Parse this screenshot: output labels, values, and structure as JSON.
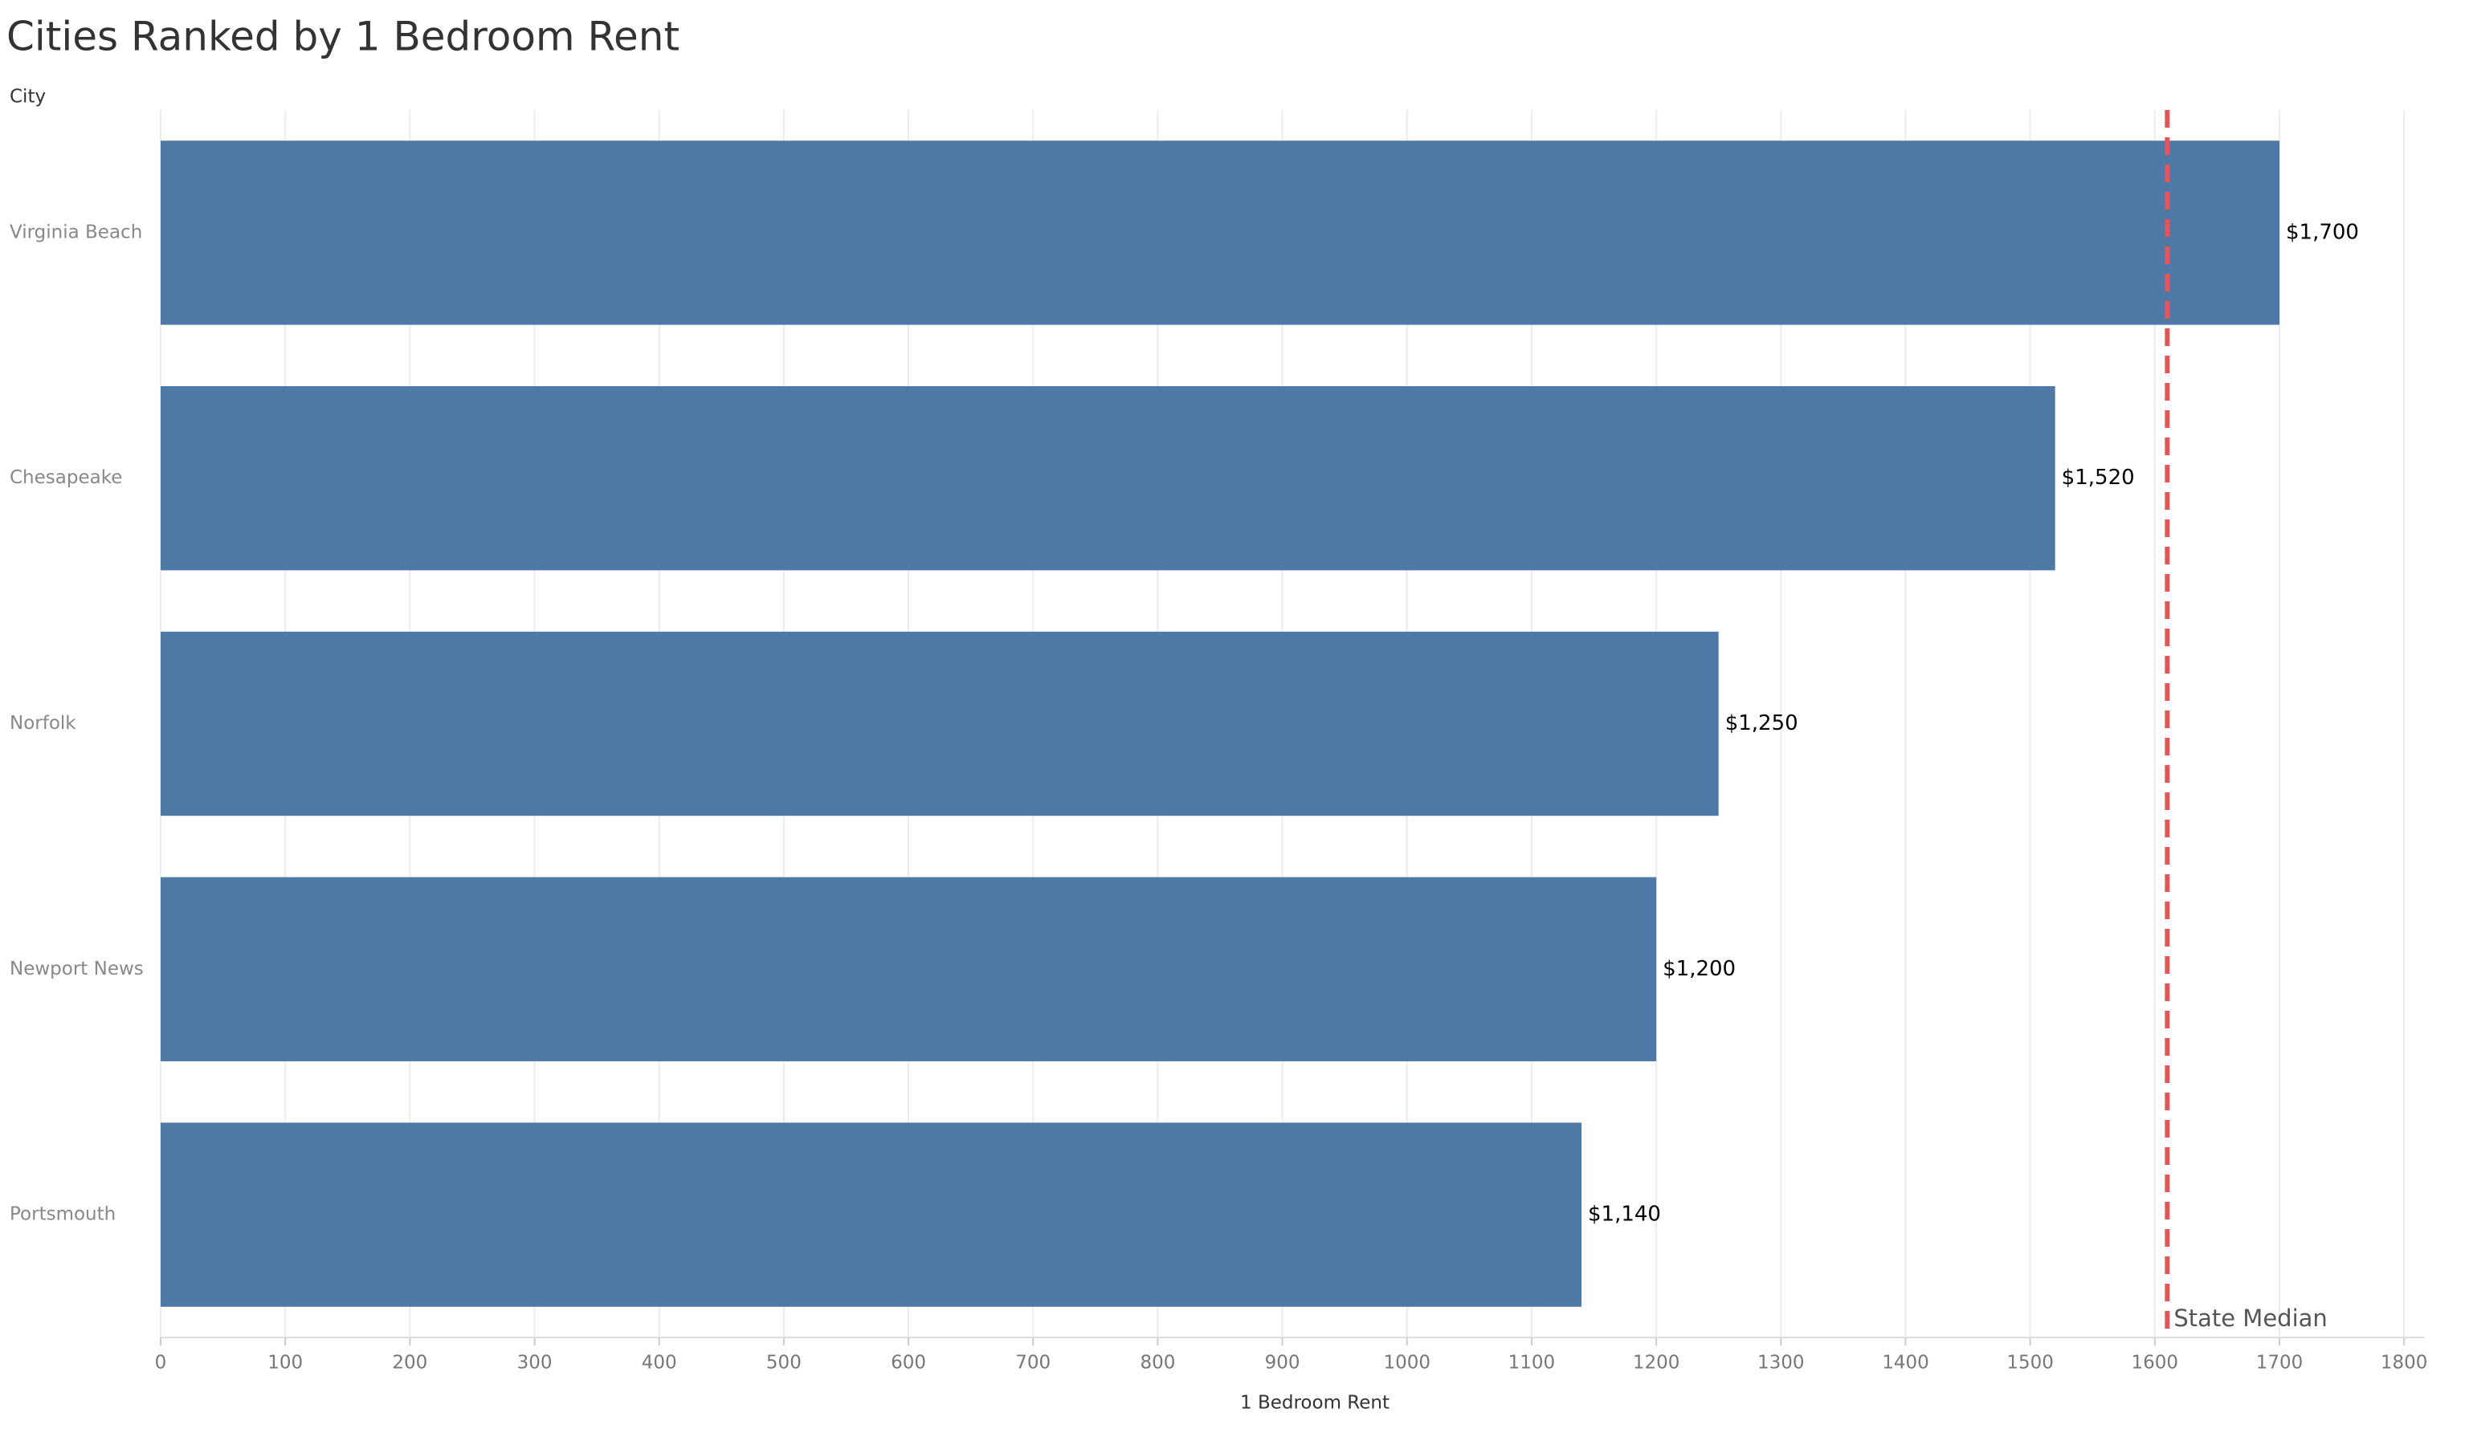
{
  "chart_data": {
    "type": "bar",
    "orientation": "horizontal",
    "title": "Cities Ranked by 1 Bedroom Rent",
    "y_label": "City",
    "x_label": "1 Bedroom Rent",
    "categories": [
      "Virginia Beach",
      "Chesapeake",
      "Norfolk",
      "Newport News",
      "Portsmouth"
    ],
    "values": [
      1700,
      1520,
      1250,
      1200,
      1140
    ],
    "value_labels": [
      "$1,700",
      "$1,520",
      "$1,250",
      "$1,200",
      "$1,140"
    ],
    "color": "#4e79a7",
    "xlim": [
      0,
      1816
    ],
    "xticks": [
      0,
      100,
      200,
      300,
      400,
      500,
      600,
      700,
      800,
      900,
      1000,
      1100,
      1200,
      1300,
      1400,
      1500,
      1600,
      1700,
      1800
    ],
    "grid": true,
    "reference_line": {
      "value": 1610,
      "label": "State Median",
      "color": "#e15759"
    }
  }
}
